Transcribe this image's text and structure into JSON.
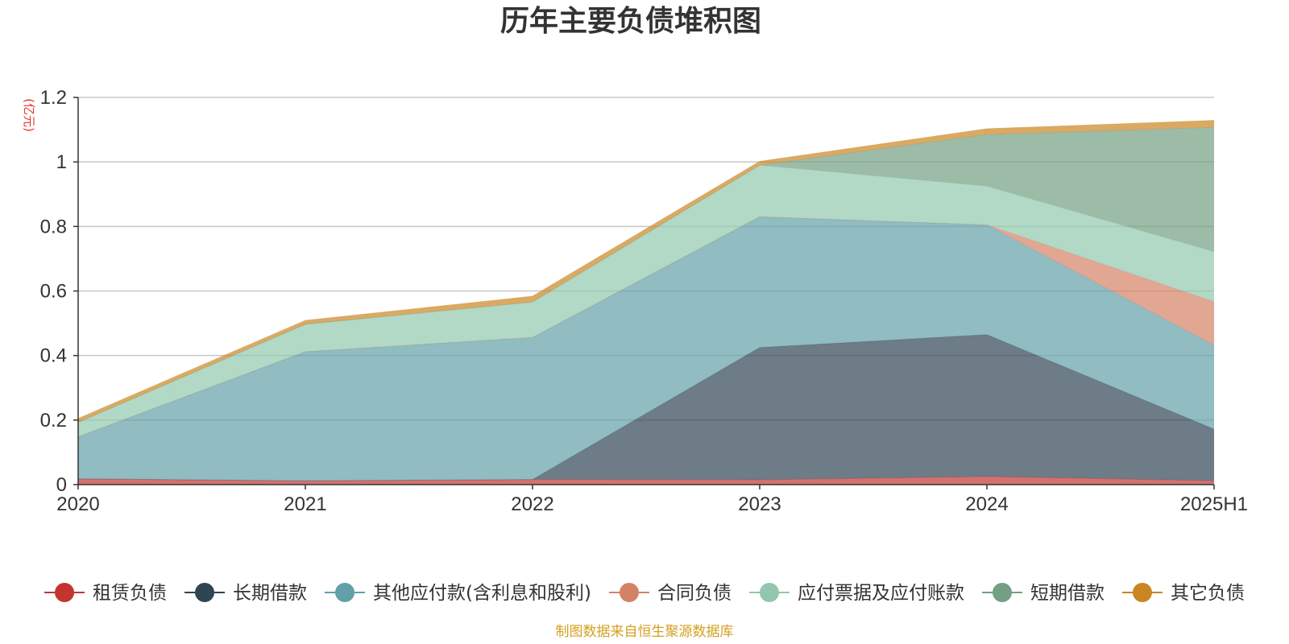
{
  "chart_data": {
    "type": "area",
    "stacked": true,
    "title": "历年主要负债堆积图",
    "unit_label": "(亿元)",
    "source_note": "制图数据来自恒生聚源数据库",
    "categories": [
      "2020",
      "2021",
      "2022",
      "2023",
      "2024",
      "2025H1"
    ],
    "ylim": [
      0,
      1.2
    ],
    "y_ticks": [
      0,
      0.2,
      0.4,
      0.6,
      0.8,
      1,
      1.2
    ],
    "y_tick_labels": [
      "0",
      "0.2",
      "0.4",
      "0.6",
      "0.8",
      "1",
      "1.2"
    ],
    "grid": true,
    "legend_position": "bottom",
    "series": [
      {
        "name": "租赁负债",
        "color": "#c23531",
        "values": [
          0.018,
          0.012,
          0.016,
          0.015,
          0.025,
          0.012
        ]
      },
      {
        "name": "长期借款",
        "color": "#2f4554",
        "values": [
          0,
          0,
          0,
          0.41,
          0.44,
          0.16
        ]
      },
      {
        "name": "其他应付款(含利息和股利)",
        "color": "#61a0a8",
        "values": [
          0.13,
          0.4,
          0.44,
          0.405,
          0.34,
          0.26
        ]
      },
      {
        "name": "合同负债",
        "color": "#d48265",
        "values": [
          0,
          0,
          0,
          0,
          0,
          0.135
        ]
      },
      {
        "name": "应付票据及应付账款",
        "color": "#91c7ae",
        "values": [
          0.045,
          0.085,
          0.11,
          0.16,
          0.12,
          0.155
        ]
      },
      {
        "name": "短期借款",
        "color": "#749f83",
        "values": [
          0,
          0,
          0,
          0,
          0.16,
          0.385
        ]
      },
      {
        "name": "其它负债",
        "color": "#ca8622",
        "values": [
          0.012,
          0.012,
          0.018,
          0.012,
          0.018,
          0.022
        ]
      }
    ]
  }
}
